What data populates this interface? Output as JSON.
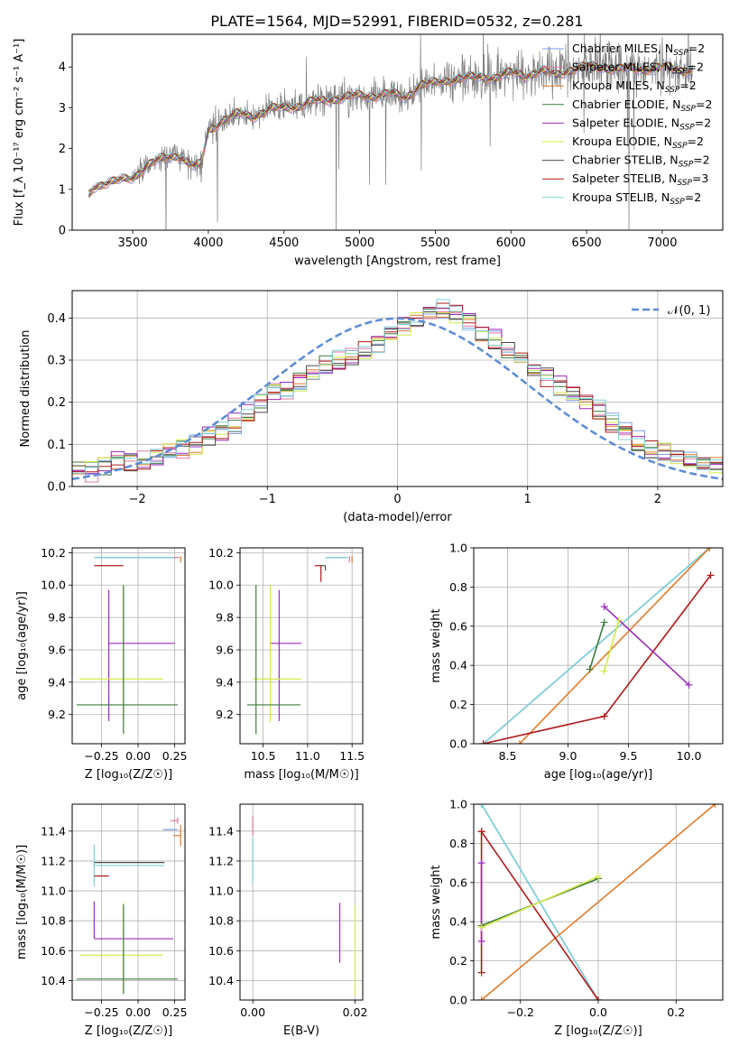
{
  "title": "PLATE=1564, MJD=52991, FIBERID=0532, z=0.281",
  "colors": {
    "Chabrier MILES": "#7f9fe0",
    "Salpeter MILES": "#e07aa0",
    "Kroupa MILES": "#e07b2a",
    "Chabrier ELODIE": "#3e7c3e",
    "Salpeter ELODIE": "#9a2bbd",
    "Kroupa ELODIE": "#d4e84a",
    "Chabrier STELIB": "#4a4a4a",
    "Salpeter STELIB": "#b01a1a",
    "Kroupa STELIB": "#7fd0d8",
    "data": "#808080",
    "normal": "#5b8ad6"
  },
  "chart_data": [
    {
      "type": "line",
      "id": "spectrum",
      "xlabel": "wavelength [Angstrom, rest frame]",
      "ylabel": "Flux [f_λ 10⁻¹⁷ erg cm⁻² s⁻¹ A⁻¹]",
      "xlim": [
        3100,
        7400
      ],
      "ylim": [
        0,
        4.8
      ],
      "xticks": [
        3500,
        4000,
        4500,
        5000,
        5500,
        6000,
        6500,
        7000
      ],
      "yticks": [
        0,
        1,
        2,
        3,
        4
      ],
      "grid": false,
      "legend_position": "top-right",
      "continuum": {
        "x": [
          3200,
          3240,
          3300,
          3400,
          3500,
          3550,
          3600,
          3700,
          3800,
          3850,
          3900,
          3950,
          4000,
          4100,
          4200,
          4300,
          4400,
          4500,
          4600,
          4700,
          4800,
          4900,
          5000,
          5100,
          5200,
          5300,
          5400,
          5500,
          5600,
          5700,
          5800,
          5900,
          6000,
          6100,
          6200,
          6300,
          6400,
          6500,
          6600,
          6700,
          6800,
          6900,
          7000,
          7100,
          7200
        ],
        "y": [
          0.8,
          1.05,
          1.15,
          1.2,
          1.28,
          1.45,
          1.6,
          1.75,
          1.85,
          1.7,
          1.55,
          1.6,
          2.45,
          2.7,
          2.85,
          2.8,
          2.95,
          3.0,
          3.05,
          3.15,
          3.2,
          3.25,
          3.3,
          3.3,
          3.35,
          3.25,
          3.55,
          3.6,
          3.7,
          3.72,
          3.75,
          3.75,
          3.85,
          3.8,
          3.9,
          3.8,
          3.95,
          4.0,
          4.0,
          3.95,
          3.95,
          3.95,
          4.0,
          3.95,
          3.9
        ]
      },
      "series": [
        {
          "name": "Chabrier MILES, N_SSP=2",
          "label": "Chabrier MILES, N",
          "sub": "SSP",
          "suffix": "=2"
        },
        {
          "name": "Salpeter MILES, N_SSP=2",
          "label": "Salpeter MILES, N",
          "sub": "SSP",
          "suffix": "=2"
        },
        {
          "name": "Kroupa MILES, N_SSP=2",
          "label": "Kroupa MILES, N",
          "sub": "SSP",
          "suffix": "=2"
        },
        {
          "name": "Chabrier ELODIE, N_SSP=2",
          "label": "Chabrier ELODIE, N",
          "sub": "SSP",
          "suffix": "=2"
        },
        {
          "name": "Salpeter ELODIE, N_SSP=2",
          "label": "Salpeter ELODIE, N",
          "sub": "SSP",
          "suffix": "=2"
        },
        {
          "name": "Kroupa ELODIE, N_SSP=2",
          "label": "Kroupa ELODIE, N",
          "sub": "SSP",
          "suffix": "=2"
        },
        {
          "name": "Chabrier STELIB, N_SSP=2",
          "label": "Chabrier STELIB, N",
          "sub": "SSP",
          "suffix": "=2"
        },
        {
          "name": "Salpeter STELIB, N_SSP=3",
          "label": "Salpeter STELIB, N",
          "sub": "SSP",
          "suffix": "=3"
        },
        {
          "name": "Kroupa STELIB, N_SSP=2",
          "label": "Kroupa STELIB, N",
          "sub": "SSP",
          "suffix": "=2"
        }
      ]
    },
    {
      "type": "histogram",
      "id": "residuals",
      "xlabel": "(data-model)/error",
      "ylabel": "Normed distribution",
      "xlim": [
        -2.5,
        2.5
      ],
      "ylim": [
        0,
        0.465
      ],
      "xticks": [
        -2,
        -1,
        0,
        1,
        2
      ],
      "yticks": [
        0.0,
        0.1,
        0.2,
        0.3,
        0.4
      ],
      "grid": true,
      "legend": {
        "label": "𝒩(0, 1)",
        "position": "top-right"
      },
      "bin_edges_start": -2.5,
      "bin_width": 0.1,
      "bin_centers_profile": [
        0.04,
        0.035,
        0.05,
        0.06,
        0.06,
        0.06,
        0.07,
        0.08,
        0.09,
        0.1,
        0.12,
        0.13,
        0.15,
        0.18,
        0.2,
        0.22,
        0.23,
        0.25,
        0.27,
        0.29,
        0.3,
        0.31,
        0.32,
        0.34,
        0.36,
        0.38,
        0.4,
        0.41,
        0.42,
        0.41,
        0.39,
        0.37,
        0.35,
        0.33,
        0.3,
        0.28,
        0.26,
        0.24,
        0.22,
        0.2,
        0.18,
        0.15,
        0.13,
        0.11,
        0.09,
        0.08,
        0.07,
        0.06,
        0.06,
        0.05
      ]
    },
    {
      "type": "scatter",
      "id": "age-vs-z",
      "xlabel": "Z [log₁₀(Z/Z☉)]",
      "ylabel": "age  [log₁₀(age/yr)]",
      "xlim": [
        -0.45,
        0.32
      ],
      "ylim": [
        9.02,
        10.23
      ],
      "xticks": [
        -0.25,
        0.0,
        0.25
      ],
      "xticklabels": [
        "−0.25",
        "0.00",
        "0.25"
      ],
      "yticks": [
        9.2,
        9.4,
        9.6,
        9.8,
        10.0,
        10.2
      ],
      "grid": true,
      "points": [
        {
          "series": "Chabrier MILES",
          "x": 0.0,
          "y": 10.17,
          "xerr": [
            0.3,
            0.28
          ],
          "yerr": [
            0.0,
            0.0
          ]
        },
        {
          "series": "Kroupa STELIB",
          "x": 0.0,
          "y": 10.17,
          "xerr": [
            0.3,
            0.28
          ],
          "yerr": [
            0.0,
            0.0
          ]
        },
        {
          "series": "Kroupa MILES",
          "x": 0.29,
          "y": 10.16,
          "xerr": [
            0.0,
            0.0
          ],
          "yerr": [
            0.02,
            0.02
          ]
        },
        {
          "series": "Salpeter MILES",
          "x": 0.26,
          "y": 10.17,
          "xerr": [
            0.0,
            0.0
          ],
          "yerr": [
            0.0,
            0.0
          ]
        },
        {
          "series": "Salpeter STELIB",
          "x": -0.2,
          "y": 10.12,
          "xerr": [
            0.1,
            0.1
          ],
          "yerr": [
            0.0,
            0.0
          ]
        },
        {
          "series": "Salpeter ELODIE",
          "x": -0.2,
          "y": 9.64,
          "xerr": [
            0.0,
            0.45
          ],
          "yerr": [
            0.48,
            0.33
          ]
        },
        {
          "series": "Kroupa ELODIE",
          "x": -0.1,
          "y": 9.42,
          "xerr": [
            0.3,
            0.27
          ],
          "yerr": [
            0.27,
            0.58
          ]
        },
        {
          "series": "Chabrier ELODIE",
          "x": -0.1,
          "y": 9.26,
          "xerr": [
            0.32,
            0.37
          ],
          "yerr": [
            0.18,
            0.74
          ]
        }
      ]
    },
    {
      "type": "scatter",
      "id": "age-vs-mass",
      "xlabel": "mass [log₁₀(M/M☉)]",
      "ylabel": "",
      "xlim": [
        10.24,
        11.62
      ],
      "ylim": [
        9.02,
        10.23
      ],
      "xticks": [
        10.5,
        11.0,
        11.5
      ],
      "xticklabels": [
        "10.5",
        "11.0",
        "11.5"
      ],
      "yticks": [
        9.2,
        9.4,
        9.6,
        9.8,
        10.0,
        10.2
      ],
      "grid": true,
      "points": [
        {
          "series": "Chabrier MILES",
          "x": 11.45,
          "y": 10.17,
          "xerr": [
            0.25,
            0.0
          ],
          "yerr": [
            0.0,
            0.0
          ]
        },
        {
          "series": "Kroupa STELIB",
          "x": 11.45,
          "y": 10.17,
          "xerr": [
            0.25,
            0.0
          ],
          "yerr": [
            0.0,
            0.0
          ]
        },
        {
          "series": "Salpeter MILES",
          "x": 11.47,
          "y": 10.16,
          "xerr": [
            0.0,
            0.0
          ],
          "yerr": [
            0.02,
            0.02
          ]
        },
        {
          "series": "Kroupa MILES",
          "x": 11.5,
          "y": 10.16,
          "xerr": [
            0.0,
            0.0
          ],
          "yerr": [
            0.02,
            0.02
          ]
        },
        {
          "series": "Chabrier STELIB",
          "x": 11.2,
          "y": 10.12,
          "xerr": [
            0.05,
            0.0
          ],
          "yerr": [
            0.03,
            0.0
          ]
        },
        {
          "series": "Salpeter STELIB",
          "x": 11.15,
          "y": 10.12,
          "xerr": [
            0.07,
            0.0
          ],
          "yerr": [
            0.1,
            0.0
          ]
        },
        {
          "series": "Salpeter ELODIE",
          "x": 10.68,
          "y": 9.64,
          "xerr": [
            0.1,
            0.25
          ],
          "yerr": [
            0.48,
            0.33
          ]
        },
        {
          "series": "Kroupa ELODIE",
          "x": 10.58,
          "y": 9.42,
          "xerr": [
            0.2,
            0.35
          ],
          "yerr": [
            0.27,
            0.58
          ]
        },
        {
          "series": "Chabrier ELODIE",
          "x": 10.42,
          "y": 9.26,
          "xerr": [
            0.1,
            0.5
          ],
          "yerr": [
            0.18,
            0.74
          ]
        }
      ]
    },
    {
      "type": "line",
      "id": "weight-vs-age",
      "xlabel": "age  [log₁₀(age/yr)]",
      "ylabel": "mass weight",
      "xlim": [
        8.22,
        10.28
      ],
      "ylim": [
        0.0,
        1.0
      ],
      "xticks": [
        8.5,
        9.0,
        9.5,
        10.0
      ],
      "xticklabels": [
        "8.5",
        "9.0",
        "9.5",
        "10.0"
      ],
      "yticks": [
        0.0,
        0.2,
        0.4,
        0.6,
        0.8,
        1.0
      ],
      "grid": true,
      "series": [
        {
          "series": "Chabrier MILES",
          "x": [
            8.3,
            10.17
          ],
          "y": [
            0.0,
            1.0
          ]
        },
        {
          "series": "Kroupa STELIB",
          "x": [
            8.3,
            10.17
          ],
          "y": [
            0.0,
            1.0
          ]
        },
        {
          "series": "Kroupa MILES",
          "x": [
            8.6,
            10.17
          ],
          "y": [
            0.0,
            1.0
          ]
        },
        {
          "series": "Salpeter STELIB",
          "x": [
            8.3,
            9.3,
            10.18
          ],
          "y": [
            0.0,
            0.14,
            0.86
          ]
        },
        {
          "series": "Salpeter ELODIE",
          "x": [
            9.3,
            10.0
          ],
          "y": [
            0.7,
            0.3
          ]
        },
        {
          "series": "Chabrier ELODIE",
          "x": [
            9.18,
            9.3
          ],
          "y": [
            0.38,
            0.62
          ]
        },
        {
          "series": "Kroupa ELODIE",
          "x": [
            9.3,
            9.42
          ],
          "y": [
            0.37,
            0.63
          ]
        }
      ]
    },
    {
      "type": "scatter",
      "id": "mass-vs-z",
      "xlabel": "Z [log₁₀(Z/Z☉)]",
      "ylabel": "mass [log₁₀(M/M☉)]",
      "xlim": [
        -0.45,
        0.32
      ],
      "ylim": [
        10.27,
        11.58
      ],
      "xticks": [
        -0.25,
        0.0,
        0.25
      ],
      "xticklabels": [
        "−0.25",
        "0.00",
        "0.25"
      ],
      "yticks": [
        10.4,
        10.6,
        10.8,
        11.0,
        11.2,
        11.4
      ],
      "grid": true,
      "points": [
        {
          "series": "Chabrier MILES",
          "x": 0.22,
          "y": 11.41,
          "xerr": [
            0.05,
            0.05
          ],
          "yerr": [
            0.0,
            0.0
          ]
        },
        {
          "series": "Salpeter MILES",
          "x": 0.27,
          "y": 11.47,
          "xerr": [
            0.05,
            0.0
          ],
          "yerr": [
            0.02,
            0.02
          ]
        },
        {
          "series": "Kroupa MILES",
          "x": 0.29,
          "y": 11.37,
          "xerr": [
            0.05,
            0.0
          ],
          "yerr": [
            0.07,
            0.07
          ]
        },
        {
          "series": "Chabrier STELIB",
          "x": -0.3,
          "y": 11.19,
          "xerr": [
            0.0,
            0.48
          ],
          "yerr": [
            0.02,
            0.0
          ]
        },
        {
          "series": "Kroupa STELIB",
          "x": -0.3,
          "y": 11.17,
          "xerr": [
            0.0,
            0.48
          ],
          "yerr": [
            0.14,
            0.14
          ]
        },
        {
          "series": "Salpeter STELIB",
          "x": -0.3,
          "y": 11.1,
          "xerr": [
            0.0,
            0.1
          ],
          "yerr": [
            0.0,
            0.0
          ]
        },
        {
          "series": "Salpeter ELODIE",
          "x": -0.3,
          "y": 10.68,
          "xerr": [
            0.0,
            0.54
          ],
          "yerr": [
            0.0,
            0.25
          ]
        },
        {
          "series": "Kroupa ELODIE",
          "x": -0.1,
          "y": 10.57,
          "xerr": [
            0.3,
            0.27
          ],
          "yerr": [
            0.25,
            0.35
          ]
        },
        {
          "series": "Chabrier ELODIE",
          "x": -0.3,
          "y": 10.41,
          "xerr": [
            0.12,
            0.57
          ],
          "yerr": [
            0.0,
            0.0
          ]
        },
        {
          "series": "Chabrier ELODIE",
          "x": -0.1,
          "y": 10.41,
          "xerr": [
            0.0,
            0.0
          ],
          "yerr": [
            0.1,
            0.5
          ]
        }
      ]
    },
    {
      "type": "scatter",
      "id": "mass-vs-ebv",
      "xlabel": "E(B-V)",
      "ylabel": "",
      "xlim": [
        -0.0025,
        0.0215
      ],
      "ylim": [
        10.27,
        11.58
      ],
      "xticks": [
        0.0,
        0.02
      ],
      "xticklabels": [
        "0.00",
        "0.02"
      ],
      "yticks": [
        10.4,
        10.6,
        10.8,
        11.0,
        11.2,
        11.4
      ],
      "grid": true,
      "points": [
        {
          "series": "Salpeter MILES",
          "x": 0.0,
          "y": 11.42,
          "xerr": [
            0.0,
            0.0
          ],
          "yerr": [
            0.05,
            0.08
          ]
        },
        {
          "series": "Kroupa STELIB",
          "x": 0.0,
          "y": 11.2,
          "xerr": [
            0.0,
            0.0
          ],
          "yerr": [
            0.15,
            0.15
          ]
        },
        {
          "series": "Salpeter ELODIE",
          "x": 0.017,
          "y": 10.72,
          "xerr": [
            0.0,
            0.0
          ],
          "yerr": [
            0.2,
            0.2
          ]
        },
        {
          "series": "Kroupa ELODIE",
          "x": 0.02,
          "y": 10.6,
          "xerr": [
            0.0,
            0.0
          ],
          "yerr": [
            0.3,
            0.3
          ]
        }
      ]
    },
    {
      "type": "line",
      "id": "weight-vs-z",
      "xlabel": "Z [log₁₀(Z/Z☉)]",
      "ylabel": "mass weight",
      "xlim": [
        -0.32,
        0.32
      ],
      "ylim": [
        0.0,
        1.0
      ],
      "xticks": [
        -0.2,
        0.0,
        0.2
      ],
      "xticklabels": [
        "−0.2",
        "0.0",
        "0.2"
      ],
      "yticks": [
        0.0,
        0.2,
        0.4,
        0.6,
        0.8,
        1.0
      ],
      "grid": true,
      "series": [
        {
          "series": "Chabrier MILES",
          "x": [
            -0.3,
            0.0
          ],
          "y": [
            1.0,
            0.0
          ]
        },
        {
          "series": "Kroupa STELIB",
          "x": [
            -0.3,
            0.0
          ],
          "y": [
            1.0,
            0.0
          ]
        },
        {
          "series": "Kroupa MILES",
          "x": [
            -0.3,
            0.3
          ],
          "y": [
            0.0,
            1.0
          ]
        },
        {
          "series": "Salpeter STELIB",
          "x": [
            -0.3,
            0.0
          ],
          "y": [
            0.86,
            0.0
          ]
        },
        {
          "series": "Salpeter STELIB",
          "x": [
            -0.3,
            -0.3
          ],
          "y": [
            0.14,
            0.86
          ]
        },
        {
          "series": "Salpeter ELODIE",
          "x": [
            -0.3,
            -0.3
          ],
          "y": [
            0.3,
            0.7
          ]
        },
        {
          "series": "Chabrier ELODIE",
          "x": [
            -0.3,
            0.0
          ],
          "y": [
            0.38,
            0.62
          ]
        },
        {
          "series": "Kroupa ELODIE",
          "x": [
            -0.3,
            0.0
          ],
          "y": [
            0.37,
            0.63
          ]
        }
      ]
    }
  ]
}
